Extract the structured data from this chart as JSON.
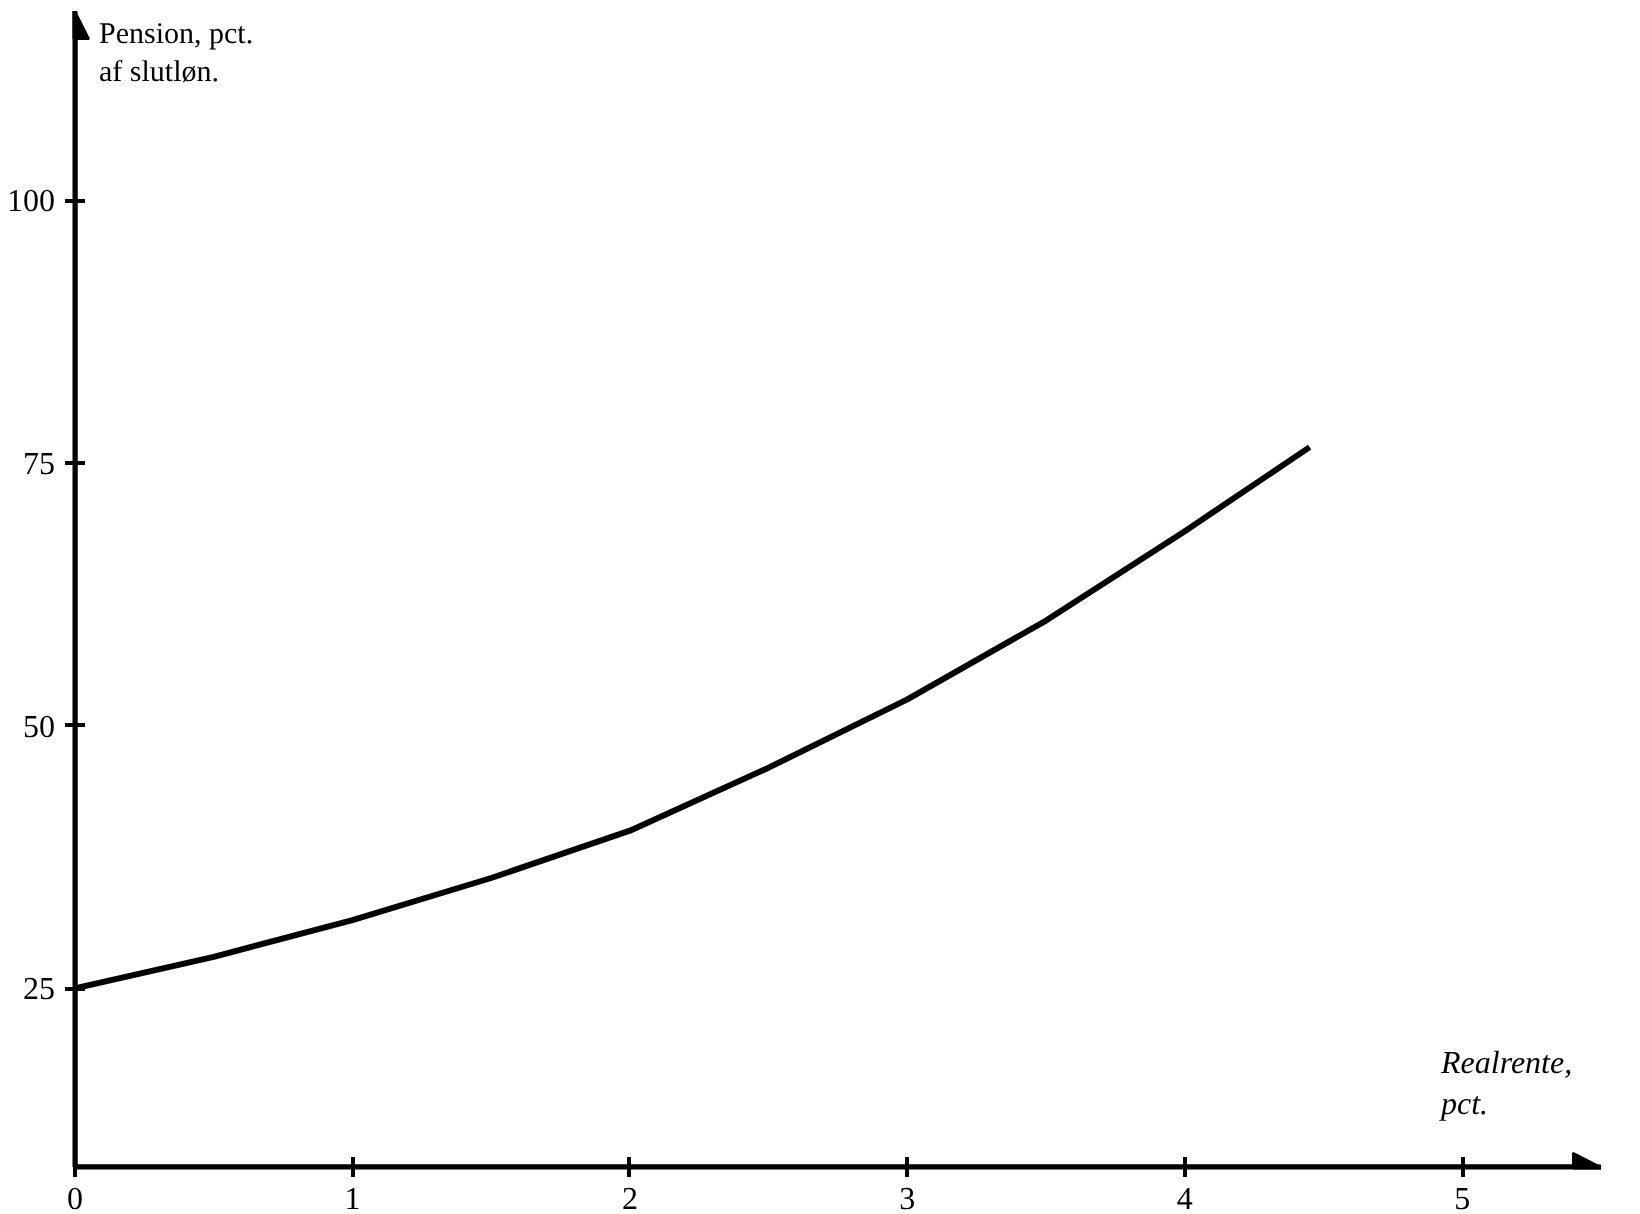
{
  "chart_data": {
    "type": "line",
    "xlabel": "Realrente,\npct.",
    "ylabel": "Pension, pct.\naf slutløn.",
    "x": [
      0,
      0.5,
      1,
      1.5,
      2,
      2.5,
      3,
      3.5,
      4,
      4.45
    ],
    "series": [
      {
        "color": "#000000",
        "values": [
          25,
          28,
          31.5,
          35.5,
          40,
          46,
          52.5,
          60,
          68.5,
          76.5
        ]
      }
    ],
    "xlim": [
      0,
      5.5
    ],
    "xticks": [
      0,
      1,
      2,
      3,
      4,
      5
    ],
    "ylim": [
      8,
      118
    ],
    "yticks": [
      25,
      50,
      75,
      100
    ],
    "grid": false,
    "marker": "none",
    "line_style": "solid"
  }
}
